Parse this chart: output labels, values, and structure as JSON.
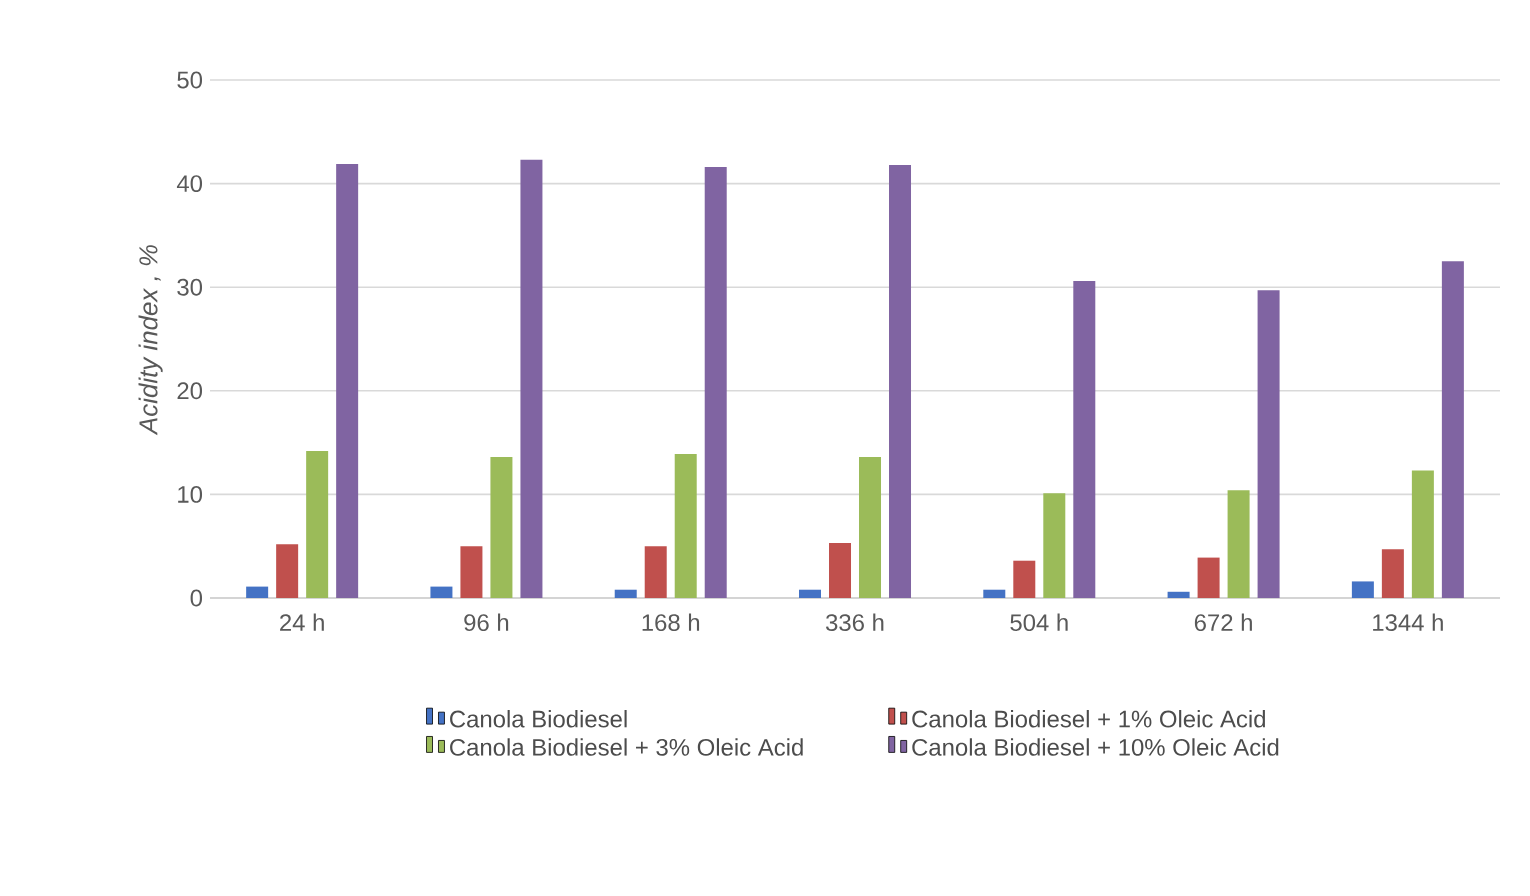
{
  "chart_data": {
    "type": "bar",
    "ylabel": "Acidity index , %",
    "categories": [
      "24 h",
      "96 h",
      "168 h",
      "336 h",
      "504 h",
      "672 h",
      "1344 h"
    ],
    "series": [
      {
        "name": "Canola Biodiesel",
        "color": "#4472c4",
        "values": [
          1.1,
          1.1,
          0.8,
          0.8,
          0.8,
          0.6,
          1.6
        ]
      },
      {
        "name": "Canola Biodiesel + 1% Oleic Acid",
        "color": "#c0504d",
        "values": [
          5.2,
          5.0,
          5.0,
          5.3,
          3.6,
          3.9,
          4.7
        ]
      },
      {
        "name": "Canola Biodiesel + 3% Oleic Acid",
        "color": "#9bbb59",
        "values": [
          14.2,
          13.6,
          13.9,
          13.6,
          10.1,
          10.4,
          12.3
        ]
      },
      {
        "name": "Canola Biodiesel + 10% Oleic Acid",
        "color": "#8064a2",
        "values": [
          41.9,
          42.3,
          41.6,
          41.8,
          30.6,
          29.7,
          32.5
        ]
      }
    ],
    "ylim": [
      0,
      50
    ],
    "yticks": [
      0,
      10,
      20,
      30,
      40,
      50
    ],
    "grid": "y",
    "legend": "bottom"
  }
}
